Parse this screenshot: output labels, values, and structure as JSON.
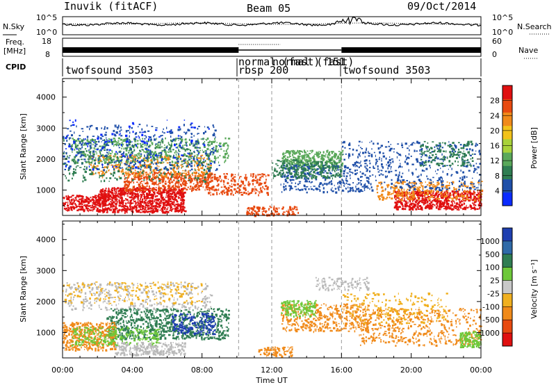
{
  "header": {
    "station": "Inuvik (fitACF)",
    "beam": "Beam 05",
    "date": "09/Oct/2014"
  },
  "top_panels": {
    "nsky_label": "N.Sky",
    "nsky_ticks_left": [
      "10^5",
      "10^0"
    ],
    "nsky_ticks_right": [
      "10^5",
      "10^0"
    ],
    "nsearch_label": "N.Search",
    "freq_label_line1": "Freq.",
    "freq_label_line2": "[MHz]",
    "freq_ticks_left": [
      "18",
      "8"
    ],
    "nave_ticks_right": [
      "60",
      "0"
    ],
    "nave_label": "Nave",
    "cpid_label": "CPID",
    "cpid_entries": [
      "twofsound 3503",
      "normal (fast)",
      "rbsp 200",
      "normal (fast)",
      "151",
      "twofsound 3503"
    ]
  },
  "colors": {
    "power_scale": [
      "#0b2bff",
      "#1f4fa8",
      "#2f7d52",
      "#5aa85a",
      "#a8d23a",
      "#f2c21a",
      "#f08a1a",
      "#e84a10",
      "#e01010"
    ],
    "velocity_scale": [
      "#1f3fb0",
      "#2f6aa8",
      "#2f7d52",
      "#6ec83a",
      "#c8c8c8",
      "#f0b020",
      "#f08a1a",
      "#e84a10",
      "#e01010"
    ],
    "grey_scatter": "#b9b9b9"
  },
  "chart_data": [
    {
      "type": "heatmap",
      "title": "Power",
      "ylabel": "Slant Range [km]",
      "xlabel": "",
      "ylim": [
        180,
        4600
      ],
      "xlim_hours": [
        0,
        24
      ],
      "x_tick_labels": [
        "00:00",
        "04:00",
        "08:00",
        "12:00",
        "16:00",
        "20:00",
        "00:00"
      ],
      "y_tick_labels": [
        "1000",
        "2000",
        "3000",
        "4000"
      ],
      "colorbar_label": "Power [dB]",
      "colorbar_ticks": [
        "4",
        "8",
        "12",
        "16",
        "20",
        "24",
        "28"
      ]
    },
    {
      "type": "heatmap",
      "title": "Velocity",
      "ylabel": "Slant Range [km]",
      "xlabel": "Time UT",
      "ylim": [
        180,
        4600
      ],
      "xlim_hours": [
        0,
        24
      ],
      "x_tick_labels": [
        "00:00",
        "04:00",
        "08:00",
        "12:00",
        "16:00",
        "20:00",
        "00:00"
      ],
      "y_tick_labels": [
        "1000",
        "2000",
        "3000",
        "4000"
      ],
      "colorbar_label": "Velocity [m s⁻¹]",
      "colorbar_ticks": [
        "1000",
        "500",
        "100",
        "25",
        "-25",
        "-100",
        "-500",
        "-1000"
      ]
    }
  ]
}
